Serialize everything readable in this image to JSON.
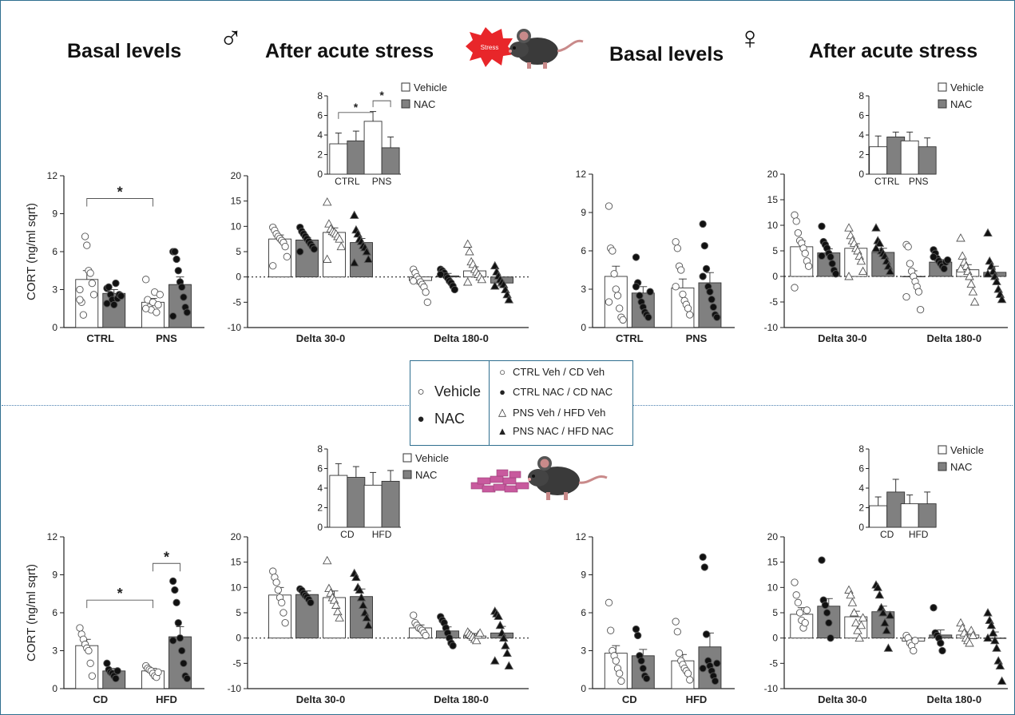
{
  "headers": {
    "male_basal": "Basal levels",
    "male_acute": "After acute stress",
    "female_basal": "Basal levels",
    "female_acute": "After acute stress",
    "stress_badge": "Stress",
    "male_symbol": "♂",
    "female_symbol": "♀"
  },
  "legend": {
    "vehicle": "Vehicle",
    "nac": "NAC",
    "items": [
      "CTRL Veh / CD Veh",
      "CTRL NAC / CD NAC",
      "PNS Veh / HFD Veh",
      "PNS NAC / HFD NAC"
    ]
  },
  "colors": {
    "vehicle_fill": "#ffffff",
    "nac_fill": "#808080",
    "border": "#2f6f8f",
    "badge": "#e8262a",
    "food": "#c85a9e"
  },
  "chart_data": [
    {
      "id": "male_basal",
      "type": "bar",
      "ylabel": "CORT (ng/ml sqrt)",
      "ylim": [
        0,
        12
      ],
      "yticks": [
        0,
        3,
        6,
        9,
        12
      ],
      "zero_line": false,
      "categories": [
        "CTRL",
        "PNS"
      ],
      "series": [
        {
          "name": "Vehicle",
          "values": [
            3.8,
            2.0
          ],
          "sem": [
            0.7,
            0.3
          ]
        },
        {
          "name": "NAC",
          "values": [
            2.7,
            3.4
          ],
          "sem": [
            0.3,
            0.6
          ]
        }
      ],
      "points": [
        [
          3.0,
          2.0,
          1.0,
          7.2,
          6.5,
          4.5,
          4.3,
          3.5,
          2.6,
          2.2
        ],
        [
          3.1,
          3.2,
          2.6,
          2.2,
          1.8,
          3.5,
          2.3,
          2.6,
          2.5,
          1.9
        ],
        [
          3.8,
          2.2,
          1.6,
          1.4,
          2.0,
          2.8,
          1.2,
          1.8,
          2.6,
          1.5
        ],
        [
          6.0,
          6.0,
          5.4,
          4.5,
          3.6,
          3.2,
          2.4,
          1.6,
          1.2,
          0.9
        ]
      ],
      "annotations": [
        {
          "text": "*",
          "from": 0,
          "to": 2,
          "y": 10.2
        }
      ]
    },
    {
      "id": "male_acute",
      "type": "bar",
      "ylim": [
        -10,
        20
      ],
      "yticks": [
        -10,
        -5,
        0,
        5,
        10,
        15,
        20
      ],
      "zero_line": true,
      "categories": [
        "Delta 30-0",
        "Delta 180-0"
      ],
      "series": [
        {
          "name": "CTRL Veh",
          "values": [
            7.5,
            -0.7
          ],
          "sem": [
            0.8,
            0.7
          ]
        },
        {
          "name": "CTRL NAC",
          "values": [
            7.3,
            0.2
          ],
          "sem": [
            0.5,
            0.5
          ]
        },
        {
          "name": "PNS Veh",
          "values": [
            8.8,
            1.2
          ],
          "sem": [
            0.9,
            0.8
          ]
        },
        {
          "name": "PNS NAC",
          "values": [
            6.8,
            -1.2
          ],
          "sem": [
            0.8,
            0.6
          ]
        }
      ],
      "points": [
        [
          9.8,
          9.2,
          8.5,
          8.0,
          7.6,
          7.2,
          6.8,
          6.0,
          4.0,
          2.2
        ],
        [
          9.8,
          9.0,
          8.5,
          8.0,
          7.5,
          7.0,
          6.5,
          6.0,
          5.5,
          5.0
        ],
        [
          14.8,
          10.5,
          9.5,
          9.0,
          8.8,
          8.5,
          8.0,
          7.5,
          6.0,
          3.5
        ],
        [
          12.2,
          9.3,
          8.5,
          7.5,
          7.0,
          6.2,
          5.8,
          5.0,
          3.5,
          2.8
        ],
        [
          1.5,
          0.8,
          0.0,
          -0.5,
          -1.0,
          -1.5,
          -2.0,
          -3.0,
          -5.0,
          -0.8
        ],
        [
          1.5,
          1.2,
          0.8,
          0.2,
          -0.2,
          -0.8,
          -1.2,
          -1.8,
          -2.5,
          0.5
        ],
        [
          6.5,
          5.0,
          3.0,
          2.5,
          1.5,
          1.0,
          0.5,
          0.0,
          -0.5,
          -1.0
        ],
        [
          2.2,
          1.0,
          0.2,
          -0.5,
          -1.0,
          -1.5,
          -2.5,
          -3.5,
          -4.5,
          -1.8
        ]
      ],
      "inset": {
        "ylim": [
          0,
          8
        ],
        "yticks": [
          0,
          2,
          4,
          6,
          8
        ],
        "categories": [
          "CTRL",
          "PNS"
        ],
        "series": [
          {
            "name": "Vehicle",
            "values": [
              3.1,
              5.4
            ],
            "sem": [
              1.1,
              1.0
            ]
          },
          {
            "name": "NAC",
            "values": [
              3.4,
              2.7
            ],
            "sem": [
              1.0,
              1.1
            ]
          }
        ],
        "annotations": [
          {
            "text": "*",
            "from": 0,
            "to": 2
          },
          {
            "text": "*",
            "from": 2,
            "to": 3
          }
        ]
      }
    },
    {
      "id": "female_basal",
      "type": "bar",
      "ylim": [
        0,
        12
      ],
      "yticks": [
        0,
        3,
        6,
        9,
        12
      ],
      "zero_line": false,
      "categories": [
        "CTRL",
        "PNS"
      ],
      "series": [
        {
          "name": "Vehicle",
          "values": [
            4.0,
            3.1
          ],
          "sem": [
            0.8,
            0.7
          ]
        },
        {
          "name": "NAC",
          "values": [
            2.7,
            3.5
          ],
          "sem": [
            0.5,
            0.8
          ]
        }
      ],
      "points": [
        [
          9.5,
          6.2,
          6.0,
          4.2,
          3.0,
          2.5,
          1.5,
          0.8,
          0.6,
          2.0
        ],
        [
          5.5,
          3.5,
          2.5,
          2.0,
          1.6,
          1.2,
          1.0,
          0.8,
          2.8,
          3.2
        ],
        [
          6.7,
          6.2,
          4.8,
          4.5,
          2.6,
          2.1,
          1.8,
          1.5,
          1.0,
          3.2
        ],
        [
          8.1,
          6.4,
          4.6,
          3.2,
          2.8,
          2.2,
          1.6,
          1.0,
          0.8,
          4.0
        ]
      ],
      "annotations": []
    },
    {
      "id": "female_acute",
      "type": "bar",
      "ylim": [
        -10,
        20
      ],
      "yticks": [
        -10,
        -5,
        0,
        5,
        10,
        15,
        20
      ],
      "zero_line": true,
      "categories": [
        "Delta 30-0",
        "Delta 180-0"
      ],
      "series": [
        {
          "name": "CTRL Veh",
          "values": [
            5.8,
            0.0
          ],
          "sem": [
            1.1,
            1.1
          ]
        },
        {
          "name": "CTRL NAC",
          "values": [
            4.6,
            2.8
          ],
          "sem": [
            0.8,
            0.5
          ]
        },
        {
          "name": "PNS Veh",
          "values": [
            5.5,
            1.3
          ],
          "sem": [
            0.9,
            1.0
          ]
        },
        {
          "name": "PNS NAC",
          "values": [
            4.7,
            0.8
          ],
          "sem": [
            0.8,
            1.2
          ]
        }
      ],
      "points": [
        [
          12.0,
          10.8,
          8.5,
          7.0,
          6.5,
          5.5,
          4.5,
          3.0,
          2.0,
          -2.2
        ],
        [
          9.8,
          6.8,
          6.2,
          5.5,
          4.5,
          3.8,
          2.5,
          1.2,
          0.5,
          4.0
        ],
        [
          9.5,
          8.0,
          7.0,
          6.5,
          5.5,
          5.0,
          4.0,
          3.0,
          1.0,
          0.0
        ],
        [
          9.5,
          7.0,
          6.5,
          5.0,
          4.5,
          4.0,
          3.0,
          2.0,
          1.0,
          5.5
        ],
        [
          6.2,
          5.8,
          2.5,
          1.0,
          0.0,
          -1.0,
          -2.0,
          -3.0,
          -6.5,
          -4.0
        ],
        [
          5.2,
          4.5,
          3.5,
          3.0,
          2.5,
          2.0,
          1.5,
          2.8,
          3.2,
          3.8
        ],
        [
          7.5,
          4.0,
          2.8,
          2.0,
          1.0,
          0.0,
          -1.5,
          -3.0,
          -5.0,
          1.5
        ],
        [
          8.5,
          3.0,
          2.0,
          1.0,
          0.0,
          -1.0,
          -2.5,
          -3.5,
          -4.5,
          0.5
        ]
      ],
      "inset": {
        "ylim": [
          0,
          8
        ],
        "yticks": [
          0,
          2,
          4,
          6,
          8
        ],
        "categories": [
          "CTRL",
          "PNS"
        ],
        "series": [
          {
            "name": "Vehicle",
            "values": [
              2.8,
              3.4
            ],
            "sem": [
              1.1,
              0.9
            ]
          },
          {
            "name": "NAC",
            "values": [
              3.8,
              2.8
            ],
            "sem": [
              0.5,
              0.9
            ]
          }
        ],
        "annotations": []
      }
    },
    {
      "id": "male_diet_basal",
      "type": "bar",
      "ylabel": "CORT (ng/ml sqrt)",
      "ylim": [
        0,
        12
      ],
      "yticks": [
        0,
        3,
        6,
        9,
        12
      ],
      "zero_line": false,
      "categories": [
        "CD",
        "HFD"
      ],
      "series": [
        {
          "name": "Vehicle",
          "values": [
            3.4,
            1.4
          ],
          "sem": [
            0.5,
            0.2
          ]
        },
        {
          "name": "NAC",
          "values": [
            1.4,
            4.1
          ],
          "sem": [
            0.2,
            0.8
          ]
        }
      ],
      "points": [
        [
          4.8,
          4.3,
          3.9,
          3.5,
          3.2,
          3.0,
          2.0,
          1.0
        ],
        [
          2.0,
          1.5,
          1.3,
          1.2,
          1.0,
          0.8,
          1.4
        ],
        [
          1.8,
          1.6,
          1.5,
          1.4,
          1.2,
          1.0,
          0.9,
          1.3
        ],
        [
          8.5,
          7.8,
          6.8,
          5.2,
          4.0,
          3.0,
          2.0,
          1.0,
          0.8,
          3.8
        ]
      ],
      "annotations": [
        {
          "text": "*",
          "from": 0,
          "to": 2,
          "y": 7.0
        },
        {
          "text": "*",
          "from": 2,
          "to": 3,
          "y": 9.9
        }
      ]
    },
    {
      "id": "male_diet_acute",
      "type": "bar",
      "ylim": [
        -10,
        20
      ],
      "yticks": [
        -10,
        -5,
        0,
        5,
        10,
        15,
        20
      ],
      "zero_line": true,
      "categories": [
        "Delta 30-0",
        "Delta 180-0"
      ],
      "series": [
        {
          "name": "CD Veh",
          "values": [
            8.5,
            2.0
          ],
          "sem": [
            1.5,
            0.6
          ]
        },
        {
          "name": "CD NAC",
          "values": [
            8.6,
            1.4
          ],
          "sem": [
            0.7,
            0.8
          ]
        },
        {
          "name": "HFD Veh",
          "values": [
            8.0,
            0.4
          ],
          "sem": [
            1.3,
            0.5
          ]
        },
        {
          "name": "HFD NAC",
          "values": [
            8.2,
            1.0
          ],
          "sem": [
            1.5,
            1.3
          ]
        }
      ],
      "points": [
        [
          13.2,
          12.0,
          11.0,
          9.5,
          8.0,
          7.0,
          5.0,
          3.0
        ],
        [
          9.7,
          9.4,
          8.8,
          8.4,
          8.1,
          7.6,
          7.0
        ],
        [
          15.3,
          9.8,
          8.9,
          8.0,
          7.5,
          6.5,
          5.2,
          4.0
        ],
        [
          12.8,
          12.0,
          10.0,
          9.5,
          8.0,
          6.5,
          5.0,
          4.0,
          2.5
        ],
        [
          4.5,
          3.0,
          2.5,
          2.0,
          1.8,
          1.5,
          1.0,
          0.5
        ],
        [
          4.2,
          3.5,
          3.0,
          2.0,
          1.0,
          0.0,
          -1.0,
          -1.5
        ],
        [
          1.2,
          0.8,
          0.5,
          0.2,
          -0.2,
          -0.5,
          0.6,
          1.0
        ],
        [
          5.3,
          4.8,
          4.3,
          2.5,
          1.0,
          0.0,
          -1.5,
          -3.0,
          -5.5,
          -4.5
        ]
      ],
      "inset": {
        "ylim": [
          0,
          8
        ],
        "yticks": [
          0,
          2,
          4,
          6,
          8
        ],
        "categories": [
          "CD",
          "HFD"
        ],
        "series": [
          {
            "name": "Vehicle",
            "values": [
              5.3,
              4.3
            ],
            "sem": [
              1.2,
              1.3
            ]
          },
          {
            "name": "NAC",
            "values": [
              5.1,
              4.7
            ],
            "sem": [
              1.1,
              1.1
            ]
          }
        ],
        "annotations": []
      }
    },
    {
      "id": "female_diet_basal",
      "type": "bar",
      "ylim": [
        0,
        12
      ],
      "yticks": [
        0,
        3,
        6,
        9,
        12
      ],
      "zero_line": false,
      "categories": [
        "CD",
        "HFD"
      ],
      "series": [
        {
          "name": "Vehicle",
          "values": [
            2.8,
            2.2
          ],
          "sem": [
            0.6,
            0.5
          ]
        },
        {
          "name": "NAC",
          "values": [
            2.6,
            3.3
          ],
          "sem": [
            0.5,
            1.1
          ]
        }
      ],
      "points": [
        [
          6.8,
          4.6,
          3.0,
          2.6,
          2.2,
          1.6,
          1.2,
          0.6
        ],
        [
          4.7,
          4.2,
          2.6,
          2.2,
          1.6,
          1.0,
          0.8
        ],
        [
          5.3,
          4.5,
          2.8,
          2.2,
          1.9,
          1.6,
          1.4,
          1.2,
          0.7
        ],
        [
          10.4,
          9.6,
          4.3,
          2.2,
          1.8,
          1.4,
          1.0,
          0.6,
          2.0,
          1.6
        ]
      ],
      "annotations": []
    },
    {
      "id": "female_diet_acute",
      "type": "bar",
      "ylim": [
        -10,
        20
      ],
      "yticks": [
        -10,
        -5,
        0,
        5,
        10,
        15,
        20
      ],
      "zero_line": true,
      "categories": [
        "Delta 30-0",
        "Delta 180-0"
      ],
      "series": [
        {
          "name": "CD Veh",
          "values": [
            4.7,
            -0.6
          ],
          "sem": [
            1.3,
            0.5
          ]
        },
        {
          "name": "CD NAC",
          "values": [
            6.3,
            0.6
          ],
          "sem": [
            1.5,
            1.0
          ]
        },
        {
          "name": "HFD Veh",
          "values": [
            4.2,
            0.6
          ],
          "sem": [
            1.1,
            0.6
          ]
        },
        {
          "name": "HFD NAC",
          "values": [
            5.2,
            0.0
          ],
          "sem": [
            1.1,
            1.2
          ]
        }
      ],
      "points": [
        [
          11.0,
          8.5,
          7.0,
          5.0,
          3.5,
          2.0,
          3.0,
          5.5
        ],
        [
          15.4,
          7.5,
          6.5,
          5.0,
          3.0,
          0.0
        ],
        [
          9.5,
          8.5,
          7.0,
          5.0,
          3.0,
          1.5,
          0.0,
          2.5,
          4.0
        ],
        [
          10.5,
          10.0,
          8.5,
          6.0,
          5.0,
          3.0,
          1.5,
          -2.0,
          4.5
        ],
        [
          0.5,
          0.0,
          -1.0,
          -1.5,
          -2.5,
          -0.5
        ],
        [
          6.0,
          1.0,
          0.5,
          0.0,
          -1.0,
          -2.5
        ],
        [
          3.0,
          2.0,
          1.0,
          0.0,
          -0.5,
          -1.0,
          1.5,
          0.5
        ],
        [
          5.0,
          3.5,
          2.5,
          1.0,
          -0.5,
          -2.0,
          -4.5,
          -5.5,
          -8.5,
          0.0
        ]
      ],
      "inset": {
        "ylim": [
          0,
          8
        ],
        "yticks": [
          0,
          2,
          4,
          6,
          8
        ],
        "categories": [
          "CD",
          "HFD"
        ],
        "series": [
          {
            "name": "Vehicle",
            "values": [
              2.2,
              2.4
            ],
            "sem": [
              0.9,
              0.9
            ]
          },
          {
            "name": "NAC",
            "values": [
              3.6,
              2.4
            ],
            "sem": [
              1.3,
              1.2
            ]
          }
        ],
        "annotations": []
      }
    }
  ]
}
